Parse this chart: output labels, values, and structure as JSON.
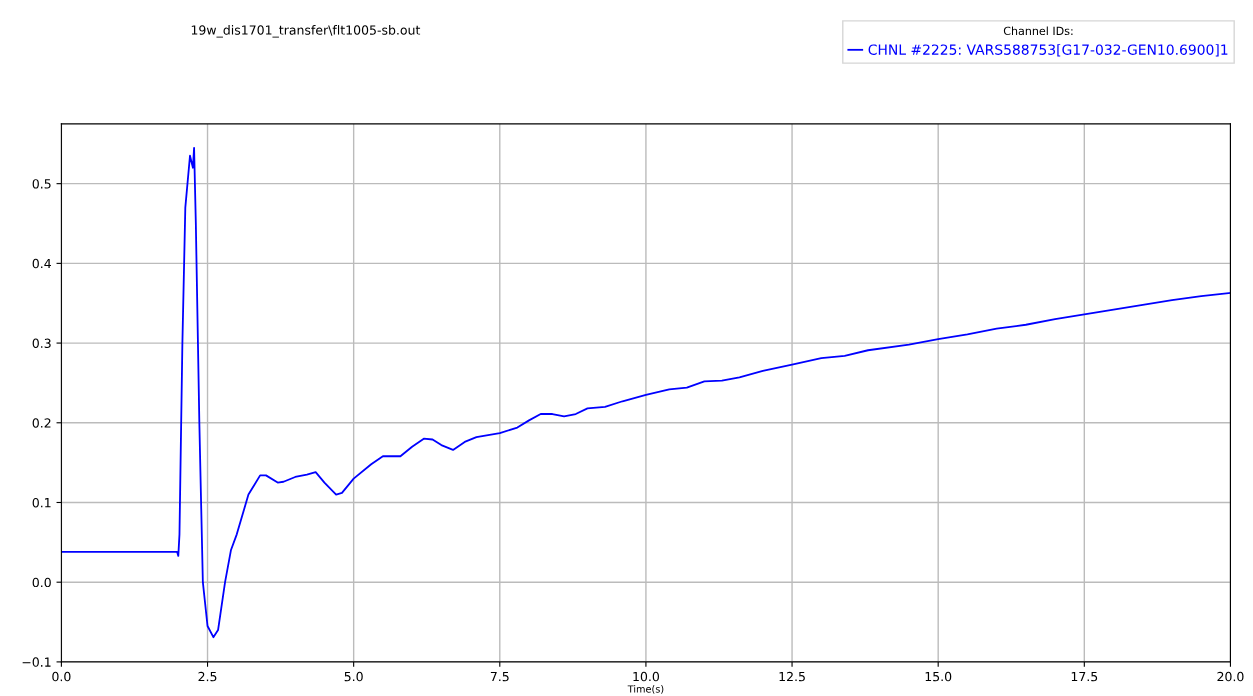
{
  "chart_data": {
    "type": "line",
    "title": "19w_dis1701_transfer\\flt1005-sb.out",
    "xlabel": "Time(s)",
    "legend_title": "Channel IDs:",
    "legend": "top right",
    "grid": true,
    "xlim": [
      0,
      20
    ],
    "xticks": [
      {
        "value": 0,
        "label": "0.0"
      },
      2.5,
      {
        "value": 5,
        "label": "5.0"
      },
      7.5,
      {
        "value": 10,
        "label": "10.0"
      },
      12.5,
      {
        "value": 15,
        "label": "15.0"
      },
      17.5,
      {
        "value": 20,
        "label": "20.0"
      }
    ],
    "ylim": [
      -0.1,
      0.575
    ],
    "yticks": [
      {
        "value": -0.1,
        "label": "−0.1"
      },
      {
        "value": 0,
        "label": "0.0"
      },
      0.1,
      0.2,
      0.3,
      0.4,
      0.5
    ],
    "series": [
      {
        "name": "CHNL #2225: VARS588753[G17-032-GEN10.6900]1",
        "color": "#0000ff",
        "x": [
          0,
          1.98,
          2.0,
          2.02,
          2.07,
          2.12,
          2.2,
          2.25,
          2.27,
          2.3,
          2.36,
          2.42,
          2.5,
          2.6,
          2.68,
          2.8,
          2.9,
          3.0,
          3.2,
          3.4,
          3.5,
          3.7,
          3.8,
          4.0,
          4.2,
          4.35,
          4.5,
          4.7,
          4.8,
          5.0,
          5.3,
          5.5,
          5.8,
          6.0,
          6.2,
          6.35,
          6.5,
          6.7,
          6.9,
          7.1,
          7.5,
          7.8,
          8.0,
          8.2,
          8.4,
          8.6,
          8.8,
          9.0,
          9.3,
          9.6,
          10.0,
          10.4,
          10.7,
          11.0,
          11.3,
          11.6,
          12.0,
          12.5,
          13.0,
          13.4,
          13.8,
          14.5,
          15.0,
          15.5,
          16.0,
          16.5,
          17.0,
          17.5,
          18.0,
          18.5,
          19.0,
          19.5,
          20.0
        ],
        "values": [
          0.038,
          0.038,
          0.033,
          0.06,
          0.3,
          0.47,
          0.535,
          0.52,
          0.545,
          0.45,
          0.2,
          0.0,
          -0.055,
          -0.069,
          -0.06,
          0.0,
          0.04,
          0.06,
          0.11,
          0.134,
          0.134,
          0.125,
          0.126,
          0.132,
          0.135,
          0.138,
          0.125,
          0.11,
          0.112,
          0.13,
          0.148,
          0.158,
          0.158,
          0.17,
          0.18,
          0.179,
          0.172,
          0.166,
          0.176,
          0.182,
          0.187,
          0.194,
          0.203,
          0.211,
          0.211,
          0.208,
          0.211,
          0.218,
          0.22,
          0.227,
          0.235,
          0.242,
          0.244,
          0.252,
          0.253,
          0.257,
          0.265,
          0.273,
          0.281,
          0.284,
          0.291,
          0.298,
          0.305,
          0.311,
          0.318,
          0.323,
          0.33,
          0.336,
          0.342,
          0.348,
          0.354,
          0.359,
          0.363
        ]
      }
    ]
  }
}
